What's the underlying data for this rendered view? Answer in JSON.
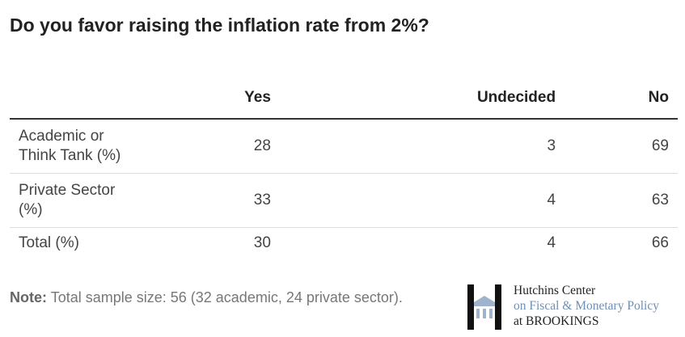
{
  "title": "Do you favor raising the inflation rate from 2%?",
  "table": {
    "header": [
      "Yes",
      "Undecided",
      "No"
    ],
    "rows": [
      {
        "label": "Academic or Think Tank (%)",
        "values": [
          28,
          3,
          69
        ]
      },
      {
        "label": "Private Sector (%)",
        "values": [
          33,
          4,
          63
        ]
      },
      {
        "label": "Total (%)",
        "values": [
          30,
          4,
          66
        ]
      }
    ]
  },
  "note": {
    "label": "Note:",
    "text": "Total sample size: 56 (32 academic, 24 private sector)."
  },
  "logo": {
    "line1": "Hutchins Center",
    "line2": "on Fiscal & Monetary Policy",
    "line3": "at BROOKINGS"
  }
}
